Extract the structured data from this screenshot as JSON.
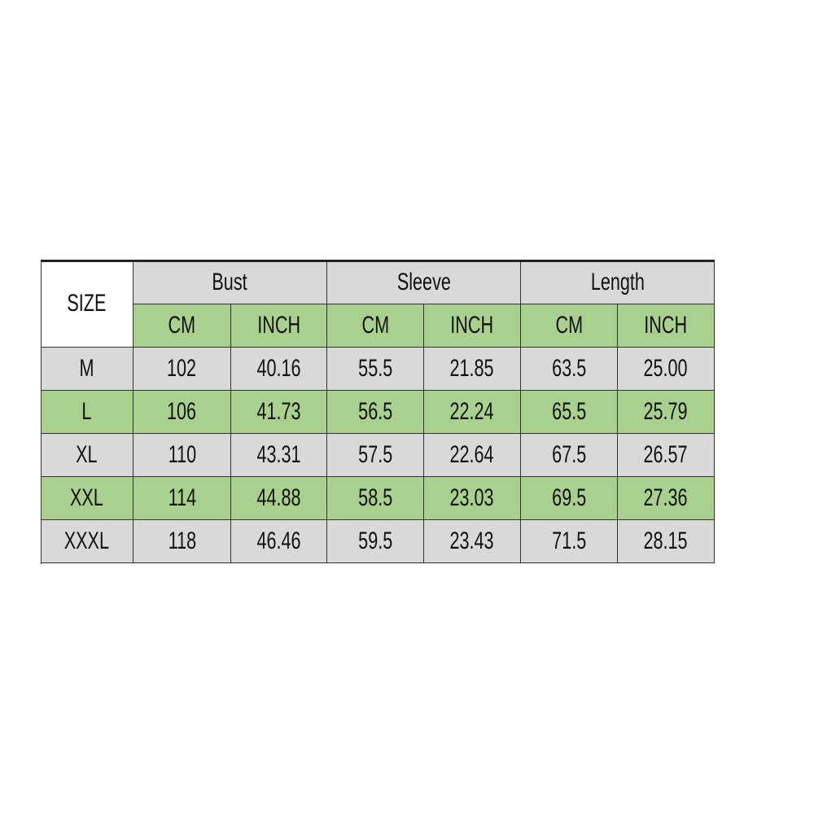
{
  "table": {
    "size_header": "SIZE",
    "groups": [
      "Bust",
      "Sleeve",
      "Length"
    ],
    "units": [
      "CM",
      "INCH",
      "CM",
      "INCH",
      "CM",
      "INCH"
    ],
    "rows": [
      [
        "M",
        "102",
        "40.16",
        "55.5",
        "21.85",
        "63.5",
        "25.00"
      ],
      [
        "L",
        "106",
        "41.73",
        "56.5",
        "22.24",
        "65.5",
        "25.79"
      ],
      [
        "XL",
        "110",
        "43.31",
        "57.5",
        "22.64",
        "67.5",
        "26.57"
      ],
      [
        "XXL",
        "114",
        "44.88",
        "58.5",
        "23.03",
        "69.5",
        "27.36"
      ],
      [
        "XXXL",
        "118",
        "46.46",
        "59.5",
        "23.43",
        "71.5",
        "28.15"
      ]
    ]
  }
}
